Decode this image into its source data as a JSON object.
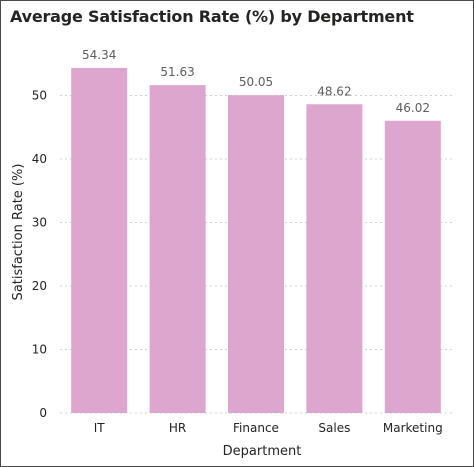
{
  "chart_data": {
    "type": "bar",
    "title": "Average Satisfaction Rate (%) by Department",
    "xlabel": "Department",
    "ylabel": "Satisfaction Rate (%)",
    "categories": [
      "IT",
      "HR",
      "Finance",
      "Sales",
      "Marketing"
    ],
    "values": [
      54.34,
      51.63,
      50.05,
      48.62,
      46.02
    ],
    "data_labels": [
      "54.34",
      "51.63",
      "50.05",
      "48.62",
      "46.02"
    ],
    "yticks": [
      0,
      10,
      20,
      30,
      40,
      50
    ],
    "ytick_labels": [
      "0",
      "10",
      "20",
      "30",
      "40",
      "50"
    ],
    "ylim": [
      0,
      60
    ],
    "grid": true,
    "bar_color": "#dda6cf",
    "grid_color": "#d0d0d0",
    "legend": "none"
  }
}
